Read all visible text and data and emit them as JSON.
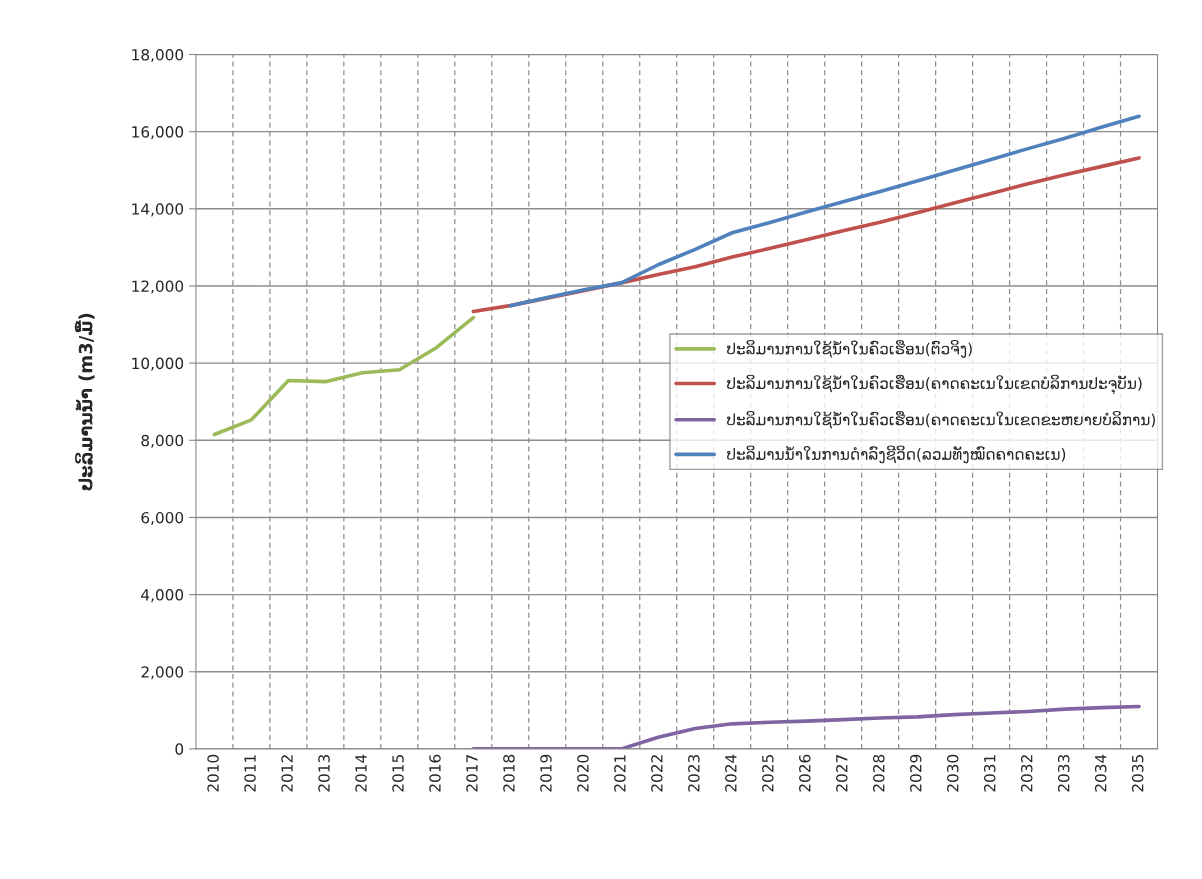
{
  "chart_data": {
    "type": "line",
    "ylabel": "ປະລິມານນ້ຳ (m3/ມື້)",
    "categories": [
      "2010",
      "2011",
      "2012",
      "2013",
      "2014",
      "2015",
      "2016",
      "2017",
      "2018",
      "2019",
      "2020",
      "2021",
      "2022",
      "2023",
      "2024",
      "2025",
      "2026",
      "2027",
      "2028",
      "2029",
      "2030",
      "2031",
      "2032",
      "2033",
      "2034",
      "2035"
    ],
    "series": [
      {
        "name": "ປະລິມານການໃຊ້ນ້ຳໃນຄົວເຮືອນ(ຕົວຈິງ)",
        "color": "#9bbb59",
        "values": [
          8150,
          8530,
          9550,
          9520,
          9750,
          9830,
          10400,
          11180,
          null,
          null,
          null,
          null,
          null,
          null,
          null,
          null,
          null,
          null,
          null,
          null,
          null,
          null,
          null,
          null,
          null,
          null
        ]
      },
      {
        "name": "ປະລິມານການໃຊ້ນ້ຳໃນຄົວເຮືອນ(ຄາດຄະເນໃນເຂດບໍລິການປະຈຸບັນ)",
        "color": "#c0504d",
        "values": [
          null,
          null,
          null,
          null,
          null,
          null,
          null,
          11340,
          11490,
          null,
          null,
          12080,
          12300,
          12500,
          12750,
          12970,
          13200,
          13430,
          13650,
          13900,
          14150,
          14400,
          14650,
          14880,
          15100,
          15320
        ]
      },
      {
        "name": "ປະລິມານການໃຊ້ນ້ຳໃນຄົວເຮືອນ(ຄາດຄະເນໃນເຂດຂະຫຍາຍບໍລິການ)",
        "color": "#8064a2",
        "values": [
          null,
          null,
          null,
          null,
          null,
          null,
          null,
          0,
          0,
          0,
          0,
          0,
          300,
          530,
          650,
          690,
          720,
          760,
          800,
          830,
          890,
          930,
          970,
          1030,
          1070,
          1100
        ]
      },
      {
        "name": "ປະລິມານນ້ຳໃນການດຳລົງຊີວິດ(ລວມທັງໝົດຄາດຄະເນ)",
        "color": "#4f81bd",
        "values": [
          null,
          null,
          null,
          null,
          null,
          null,
          null,
          null,
          11490,
          11700,
          11900,
          12080,
          12550,
          12950,
          13380,
          13640,
          13920,
          14180,
          14450,
          14720,
          15000,
          15280,
          15560,
          15830,
          16120,
          16400
        ]
      }
    ],
    "ylim": [
      0,
      18000
    ],
    "yticks": [
      {
        "value": 0,
        "label": "0"
      },
      {
        "value": 2000,
        "label": "2,000"
      },
      {
        "value": 4000,
        "label": "4,000"
      },
      {
        "value": 6000,
        "label": "6,000"
      },
      {
        "value": 8000,
        "label": "8,000"
      },
      {
        "value": 10000,
        "label": "10,000"
      },
      {
        "value": 12000,
        "label": "12,000"
      },
      {
        "value": 14000,
        "label": "14,000"
      },
      {
        "value": 16000,
        "label": "16,000"
      },
      {
        "value": 18000,
        "label": "18,000"
      }
    ],
    "grid": true,
    "legend": "right",
    "marker": "none",
    "line_style": "solid"
  }
}
